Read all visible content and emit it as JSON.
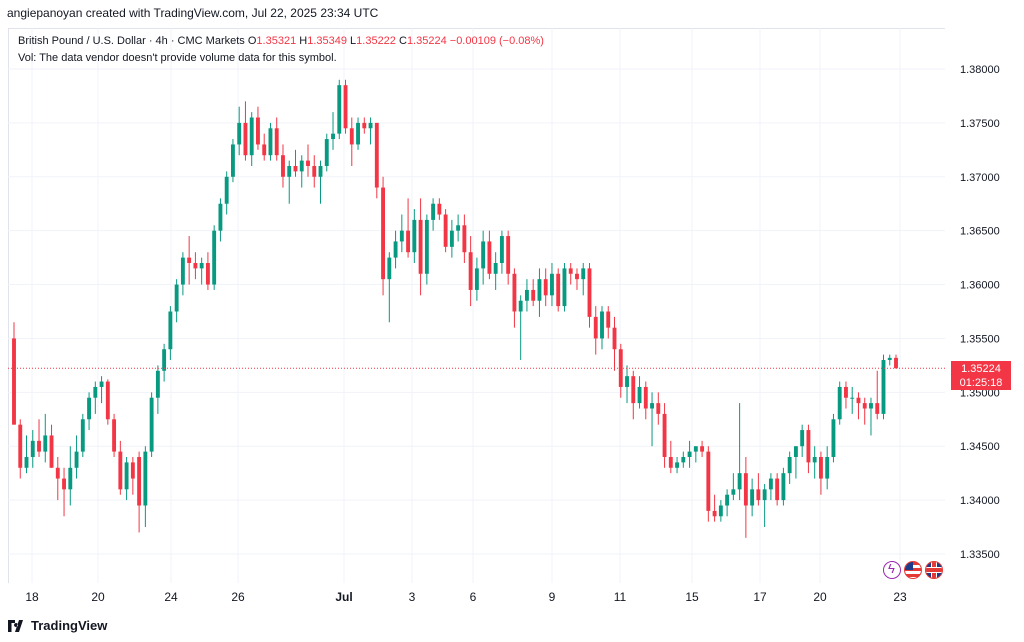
{
  "credit": "angiepanoyan created with TradingView.com, Jul 22, 2025 23:34 UTC",
  "legend": {
    "symbol": "British Pound / U.S. Dollar · 4h · CMC Markets",
    "o_label": "O",
    "o_value": "1.35321",
    "h_label": "H",
    "h_value": "1.35349",
    "l_label": "L",
    "l_value": "1.35222",
    "c_label": "C",
    "c_value": "1.35224",
    "change": "−0.00109 (−0.08%)",
    "vol_note": "Vol: The data vendor doesn't provide volume data for this symbol."
  },
  "price_tag": {
    "price": "1.35224",
    "countdown": "01:25:18"
  },
  "footer": {
    "brand": "TradingView"
  },
  "colors": {
    "up": "#089981",
    "down": "#f23645",
    "grid": "#f0f3fa",
    "text": "#131722"
  },
  "icons": [
    "lightning-icon",
    "us-flag-icon",
    "uk-flag-icon"
  ],
  "chart_data": {
    "type": "candlestick",
    "ylim": [
      1.3325,
      1.3815
    ],
    "y_ticks": [
      "1.38000",
      "1.37500",
      "1.37000",
      "1.36500",
      "1.36000",
      "1.35500",
      "1.35000",
      "1.34500",
      "1.34000",
      "1.33500"
    ],
    "x_ticks": [
      "18",
      "20",
      "24",
      "26",
      "Jul",
      "3",
      "6",
      "9",
      "11",
      "15",
      "17",
      "20",
      "23"
    ],
    "last_price": 1.35224,
    "candles": [
      [
        1.355,
        1.3565,
        1.347,
        1.347
      ],
      [
        1.347,
        1.3475,
        1.342,
        1.343
      ],
      [
        1.343,
        1.346,
        1.3425,
        1.344
      ],
      [
        1.344,
        1.3465,
        1.343,
        1.3455
      ],
      [
        1.3455,
        1.3475,
        1.344,
        1.3445
      ],
      [
        1.3445,
        1.348,
        1.3435,
        1.346
      ],
      [
        1.346,
        1.347,
        1.343,
        1.343
      ],
      [
        1.343,
        1.344,
        1.34,
        1.342
      ],
      [
        1.342,
        1.343,
        1.3385,
        1.341
      ],
      [
        1.341,
        1.345,
        1.3395,
        1.343
      ],
      [
        1.343,
        1.346,
        1.342,
        1.3445
      ],
      [
        1.3445,
        1.348,
        1.344,
        1.3475
      ],
      [
        1.3475,
        1.35,
        1.3465,
        1.3495
      ],
      [
        1.3495,
        1.351,
        1.348,
        1.3505
      ],
      [
        1.3505,
        1.3515,
        1.349,
        1.351
      ],
      [
        1.351,
        1.3512,
        1.347,
        1.3475
      ],
      [
        1.3475,
        1.348,
        1.344,
        1.3445
      ],
      [
        1.3445,
        1.3455,
        1.3405,
        1.341
      ],
      [
        1.341,
        1.344,
        1.34,
        1.3435
      ],
      [
        1.3435,
        1.344,
        1.3405,
        1.342
      ],
      [
        1.344,
        1.3445,
        1.337,
        1.3395
      ],
      [
        1.3395,
        1.345,
        1.3375,
        1.3445
      ],
      [
        1.3445,
        1.35,
        1.344,
        1.3495
      ],
      [
        1.3495,
        1.3525,
        1.348,
        1.352
      ],
      [
        1.352,
        1.3545,
        1.351,
        1.354
      ],
      [
        1.354,
        1.358,
        1.353,
        1.3575
      ],
      [
        1.3575,
        1.3605,
        1.3565,
        1.36
      ],
      [
        1.36,
        1.363,
        1.359,
        1.3625
      ],
      [
        1.3625,
        1.3645,
        1.36,
        1.362
      ],
      [
        1.362,
        1.363,
        1.3605,
        1.3615
      ],
      [
        1.3615,
        1.3625,
        1.36,
        1.362
      ],
      [
        1.362,
        1.363,
        1.3595,
        1.36
      ],
      [
        1.36,
        1.3655,
        1.3595,
        1.365
      ],
      [
        1.365,
        1.368,
        1.364,
        1.3675
      ],
      [
        1.3675,
        1.3705,
        1.3665,
        1.37
      ],
      [
        1.37,
        1.3735,
        1.3695,
        1.373
      ],
      [
        1.373,
        1.3765,
        1.372,
        1.375
      ],
      [
        1.375,
        1.377,
        1.3715,
        1.372
      ],
      [
        1.372,
        1.376,
        1.371,
        1.3755
      ],
      [
        1.3755,
        1.3765,
        1.3725,
        1.373
      ],
      [
        1.373,
        1.374,
        1.3715,
        1.372
      ],
      [
        1.372,
        1.375,
        1.3715,
        1.3745
      ],
      [
        1.3745,
        1.3755,
        1.3715,
        1.372
      ],
      [
        1.372,
        1.373,
        1.369,
        1.37
      ],
      [
        1.37,
        1.3715,
        1.3675,
        1.371
      ],
      [
        1.371,
        1.3725,
        1.37,
        1.3705
      ],
      [
        1.3705,
        1.372,
        1.369,
        1.3715
      ],
      [
        1.3715,
        1.373,
        1.37,
        1.371
      ],
      [
        1.371,
        1.372,
        1.369,
        1.37
      ],
      [
        1.37,
        1.3715,
        1.3675,
        1.371
      ],
      [
        1.371,
        1.374,
        1.3705,
        1.3735
      ],
      [
        1.3735,
        1.376,
        1.3725,
        1.374
      ],
      [
        1.374,
        1.379,
        1.3735,
        1.3785
      ],
      [
        1.3785,
        1.379,
        1.374,
        1.3745
      ],
      [
        1.3745,
        1.3755,
        1.371,
        1.373
      ],
      [
        1.373,
        1.3755,
        1.3725,
        1.375
      ],
      [
        1.375,
        1.3755,
        1.374,
        1.3745
      ],
      [
        1.3745,
        1.3755,
        1.373,
        1.375
      ],
      [
        1.375,
        1.375,
        1.368,
        1.369
      ],
      [
        1.369,
        1.37,
        1.359,
        1.3605
      ],
      [
        1.3605,
        1.363,
        1.3565,
        1.3625
      ],
      [
        1.3625,
        1.365,
        1.3615,
        1.364
      ],
      [
        1.364,
        1.3665,
        1.363,
        1.365
      ],
      [
        1.365,
        1.368,
        1.3625,
        1.363
      ],
      [
        1.363,
        1.367,
        1.362,
        1.366
      ],
      [
        1.366,
        1.368,
        1.359,
        1.361
      ],
      [
        1.361,
        1.3665,
        1.36,
        1.366
      ],
      [
        1.366,
        1.368,
        1.365,
        1.3675
      ],
      [
        1.3675,
        1.368,
        1.366,
        1.3665
      ],
      [
        1.3665,
        1.367,
        1.363,
        1.3635
      ],
      [
        1.3635,
        1.366,
        1.3625,
        1.365
      ],
      [
        1.365,
        1.3665,
        1.364,
        1.3655
      ],
      [
        1.3655,
        1.3665,
        1.362,
        1.363
      ],
      [
        1.363,
        1.3645,
        1.358,
        1.3595
      ],
      [
        1.3595,
        1.3625,
        1.3585,
        1.3615
      ],
      [
        1.3615,
        1.365,
        1.36,
        1.364
      ],
      [
        1.364,
        1.365,
        1.3605,
        1.361
      ],
      [
        1.361,
        1.363,
        1.3595,
        1.362
      ],
      [
        1.362,
        1.365,
        1.361,
        1.3645
      ],
      [
        1.3645,
        1.365,
        1.36,
        1.361
      ],
      [
        1.361,
        1.3615,
        1.356,
        1.3575
      ],
      [
        1.3575,
        1.359,
        1.353,
        1.3585
      ],
      [
        1.3585,
        1.3605,
        1.3575,
        1.3595
      ],
      [
        1.3595,
        1.3605,
        1.358,
        1.3585
      ],
      [
        1.3585,
        1.3615,
        1.357,
        1.3605
      ],
      [
        1.3605,
        1.3615,
        1.358,
        1.359
      ],
      [
        1.359,
        1.362,
        1.358,
        1.361
      ],
      [
        1.361,
        1.3615,
        1.3575,
        1.358
      ],
      [
        1.358,
        1.362,
        1.3575,
        1.3615
      ],
      [
        1.3615,
        1.362,
        1.36,
        1.361
      ],
      [
        1.361,
        1.3615,
        1.3595,
        1.3605
      ],
      [
        1.3605,
        1.362,
        1.359,
        1.3615
      ],
      [
        1.3615,
        1.362,
        1.356,
        1.357
      ],
      [
        1.357,
        1.358,
        1.3535,
        1.355
      ],
      [
        1.355,
        1.358,
        1.354,
        1.3575
      ],
      [
        1.3575,
        1.358,
        1.355,
        1.356
      ],
      [
        1.356,
        1.357,
        1.352,
        1.354
      ],
      [
        1.354,
        1.3545,
        1.3495,
        1.3505
      ],
      [
        1.3505,
        1.3525,
        1.349,
        1.3515
      ],
      [
        1.3515,
        1.352,
        1.3475,
        1.349
      ],
      [
        1.349,
        1.3515,
        1.3485,
        1.3505
      ],
      [
        1.3505,
        1.351,
        1.3475,
        1.3485
      ],
      [
        1.3485,
        1.35,
        1.345,
        1.349
      ],
      [
        1.349,
        1.35,
        1.347,
        1.348
      ],
      [
        1.348,
        1.349,
        1.343,
        1.344
      ],
      [
        1.344,
        1.3455,
        1.3425,
        1.343
      ],
      [
        1.343,
        1.344,
        1.3425,
        1.3435
      ],
      [
        1.3435,
        1.3445,
        1.343,
        1.344
      ],
      [
        1.344,
        1.3455,
        1.343,
        1.3445
      ],
      [
        1.3445,
        1.345,
        1.3435,
        1.345
      ],
      [
        1.345,
        1.3455,
        1.344,
        1.3445
      ],
      [
        1.3445,
        1.345,
        1.338,
        1.339
      ],
      [
        1.339,
        1.3405,
        1.338,
        1.3385
      ],
      [
        1.3385,
        1.34,
        1.338,
        1.3395
      ],
      [
        1.3395,
        1.341,
        1.3385,
        1.3405
      ],
      [
        1.3405,
        1.3425,
        1.34,
        1.341
      ],
      [
        1.341,
        1.349,
        1.34,
        1.3425
      ],
      [
        1.3425,
        1.344,
        1.3365,
        1.3395
      ],
      [
        1.3395,
        1.342,
        1.3385,
        1.341
      ],
      [
        1.341,
        1.3425,
        1.3395,
        1.34
      ],
      [
        1.34,
        1.3415,
        1.3375,
        1.341
      ],
      [
        1.341,
        1.3425,
        1.34,
        1.342
      ],
      [
        1.342,
        1.3425,
        1.3395,
        1.34
      ],
      [
        1.34,
        1.343,
        1.3395,
        1.3425
      ],
      [
        1.3425,
        1.3445,
        1.3415,
        1.344
      ],
      [
        1.344,
        1.345,
        1.342,
        1.345
      ],
      [
        1.345,
        1.347,
        1.344,
        1.3465
      ],
      [
        1.3465,
        1.347,
        1.3425,
        1.3435
      ],
      [
        1.3435,
        1.345,
        1.342,
        1.344
      ],
      [
        1.344,
        1.3445,
        1.3405,
        1.342
      ],
      [
        1.342,
        1.345,
        1.341,
        1.344
      ],
      [
        1.344,
        1.348,
        1.3435,
        1.3475
      ],
      [
        1.3475,
        1.351,
        1.347,
        1.3505
      ],
      [
        1.3505,
        1.351,
        1.3485,
        1.3495
      ],
      [
        1.3495,
        1.3505,
        1.348,
        1.3495
      ],
      [
        1.3495,
        1.35,
        1.3475,
        1.349
      ],
      [
        1.349,
        1.3495,
        1.347,
        1.3485
      ],
      [
        1.3485,
        1.3495,
        1.346,
        1.349
      ],
      [
        1.349,
        1.352,
        1.3475,
        1.348
      ],
      [
        1.348,
        1.3535,
        1.3475,
        1.353
      ],
      [
        1.353,
        1.3535,
        1.3525,
        1.3532
      ],
      [
        1.3532,
        1.3535,
        1.3522,
        1.35224
      ]
    ]
  }
}
